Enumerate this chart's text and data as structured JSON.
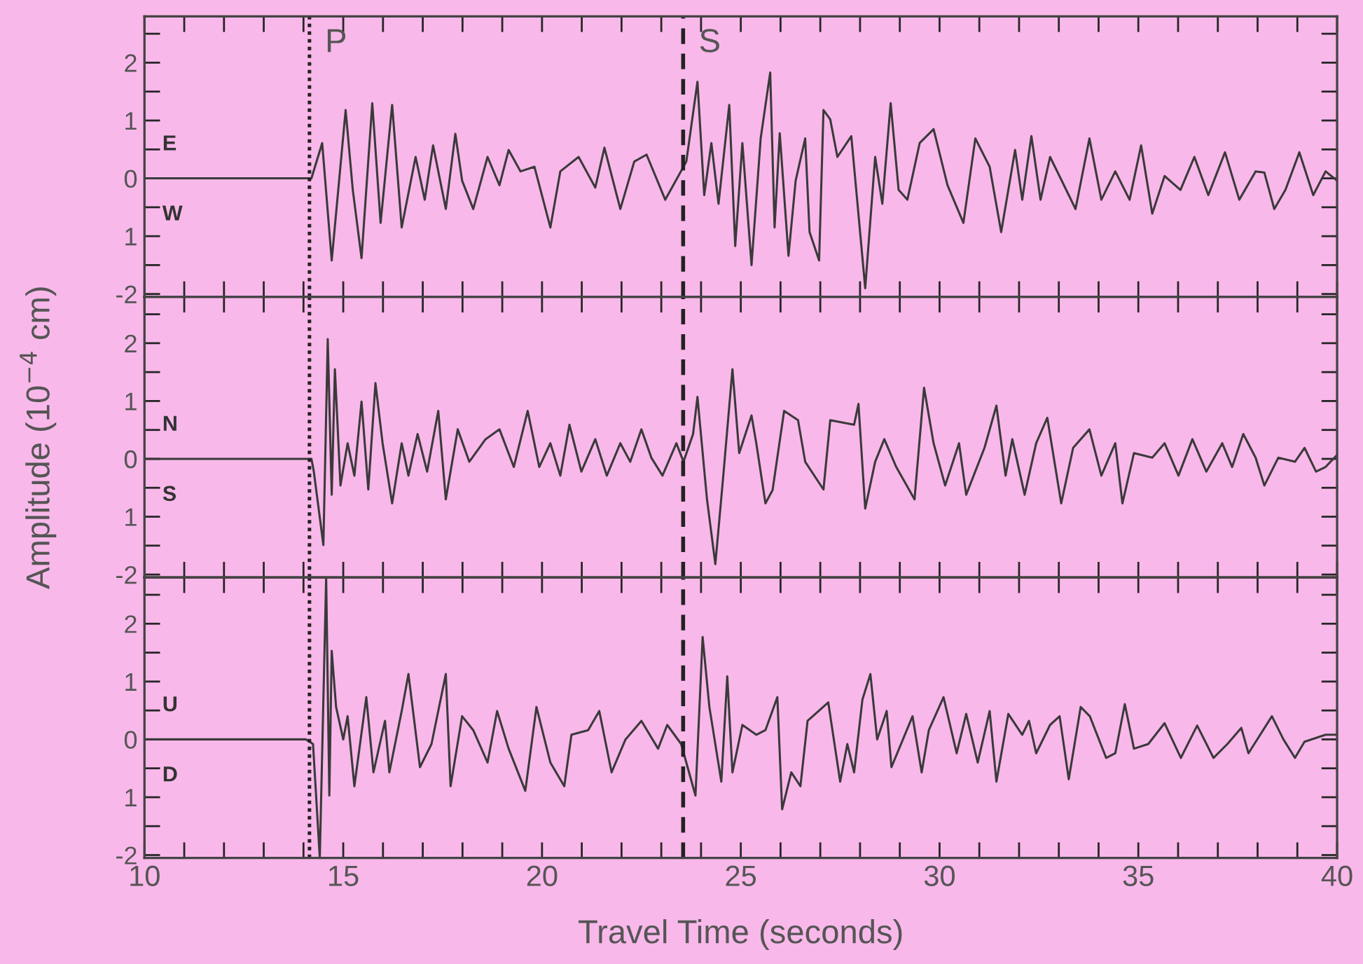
{
  "chart_data": [
    {
      "type": "line",
      "tick_labels": "y",
      "xlim": [
        10,
        40
      ],
      "ylim": [
        -2.05,
        2.8
      ],
      "xticks": [
        {
          "value": 10,
          "label": null
        },
        {
          "value": 11,
          "label": null
        },
        {
          "value": 12,
          "label": null
        },
        {
          "value": 13,
          "label": null
        },
        {
          "value": 14,
          "label": null
        },
        {
          "value": 15,
          "label": null
        },
        {
          "value": 16,
          "label": null
        },
        {
          "value": 17,
          "label": null
        },
        {
          "value": 18,
          "label": null
        },
        {
          "value": 19,
          "label": null
        },
        {
          "value": 20,
          "label": null
        },
        {
          "value": 21,
          "label": null
        },
        {
          "value": 22,
          "label": null
        },
        {
          "value": 23,
          "label": null
        },
        {
          "value": 24,
          "label": null
        },
        {
          "value": 25,
          "label": null
        },
        {
          "value": 26,
          "label": null
        },
        {
          "value": 27,
          "label": null
        },
        {
          "value": 28,
          "label": null
        },
        {
          "value": 29,
          "label": null
        },
        {
          "value": 30,
          "label": null
        },
        {
          "value": 31,
          "label": null
        },
        {
          "value": 32,
          "label": null
        },
        {
          "value": 33,
          "label": null
        },
        {
          "value": 34,
          "label": null
        },
        {
          "value": 35,
          "label": null
        },
        {
          "value": 36,
          "label": null
        },
        {
          "value": 37,
          "label": null
        },
        {
          "value": 38,
          "label": null
        },
        {
          "value": 39,
          "label": null
        },
        {
          "value": 40,
          "label": null
        }
      ],
      "yticks": [
        -2,
        {
          "value": -1.5,
          "label": null
        },
        {
          "value": -1,
          "label": "1"
        },
        {
          "value": -0.5,
          "label": null
        },
        0,
        {
          "value": 0.5,
          "label": null
        },
        1,
        {
          "value": 1.5,
          "label": null
        },
        2,
        {
          "value": 2.5,
          "label": null
        }
      ],
      "ref_lines": [
        {
          "axis": "x",
          "value": 14.15,
          "label": "P",
          "line_style": "dotted",
          "color": "#222222"
        },
        {
          "axis": "x",
          "value": 23.55,
          "label": "S",
          "line_style": "dashed",
          "color": "#222222"
        }
      ],
      "annotations": [
        "E",
        "W"
      ],
      "series": [
        {
          "color": "#3a3a3a",
          "x": [
            10,
            14.2,
            14.47,
            14.71,
            15.06,
            15.24,
            15.46,
            15.73,
            15.94,
            16.23,
            16.47,
            16.82,
            17.05,
            17.26,
            17.58,
            17.82,
            17.99,
            18.27,
            18.63,
            18.93,
            19.16,
            19.46,
            19.81,
            20.21,
            20.46,
            20.92,
            21.34,
            21.57,
            21.97,
            22.32,
            22.63,
            23.1,
            23.63,
            23.91,
            24.08,
            24.26,
            24.44,
            24.71,
            24.86,
            25.04,
            25.27,
            25.5,
            25.74,
            25.85,
            25.98,
            26.2,
            26.38,
            26.62,
            26.73,
            26.97,
            27.08,
            27.25,
            27.43,
            27.78,
            28.13,
            28.38,
            28.56,
            28.77,
            28.97,
            29.19,
            29.5,
            29.85,
            30.2,
            30.6,
            30.9,
            31.26,
            31.55,
            31.9,
            32.08,
            32.31,
            32.54,
            32.78,
            33.13,
            33.42,
            33.77,
            34.07,
            34.42,
            34.78,
            35.07,
            35.35,
            35.66,
            36.06,
            36.41,
            36.76,
            37.18,
            37.54,
            37.95,
            38.17,
            38.42,
            38.7,
            39.05,
            39.4,
            39.71,
            40
          ],
          "values": [
            0,
            0,
            0.61,
            -1.42,
            1.18,
            -0.2,
            -1.38,
            1.3,
            -0.77,
            1.27,
            -0.85,
            0.37,
            -0.37,
            0.57,
            -0.53,
            0.77,
            -0.04,
            -0.53,
            0.37,
            -0.12,
            0.49,
            0.12,
            0.2,
            -0.85,
            0.12,
            0.37,
            -0.16,
            0.53,
            -0.53,
            0.29,
            0.41,
            -0.37,
            0.29,
            1.67,
            -0.29,
            0.61,
            -0.44,
            1.27,
            -1.17,
            0.61,
            -1.5,
            0.69,
            1.83,
            -0.85,
            0.78,
            -1.34,
            -0.04,
            0.69,
            -0.93,
            -1.42,
            1.18,
            1.02,
            0.37,
            0.73,
            -1.9,
            0.37,
            -0.44,
            1.3,
            -0.2,
            -0.37,
            0.61,
            0.85,
            -0.12,
            -0.77,
            0.69,
            0.2,
            -0.93,
            0.49,
            -0.37,
            0.73,
            -0.37,
            0.37,
            -0.12,
            -0.53,
            0.69,
            -0.37,
            0.12,
            -0.37,
            0.57,
            -0.61,
            0.04,
            -0.2,
            0.37,
            -0.29,
            0.45,
            -0.37,
            0.12,
            0.1,
            -0.53,
            -0.2,
            0.45,
            -0.29,
            0.12,
            -0.04
          ]
        }
      ]
    },
    {
      "type": "line",
      "tick_labels": "y",
      "xlim": [
        10,
        40
      ],
      "ylim": [
        -2.05,
        2.8
      ],
      "ylabel": "Amplitude (10$^{−4}$ cm)",
      "xticks": [
        {
          "value": 10,
          "label": null
        },
        {
          "value": 11,
          "label": null
        },
        {
          "value": 12,
          "label": null
        },
        {
          "value": 13,
          "label": null
        },
        {
          "value": 14,
          "label": null
        },
        {
          "value": 15,
          "label": null
        },
        {
          "value": 16,
          "label": null
        },
        {
          "value": 17,
          "label": null
        },
        {
          "value": 18,
          "label": null
        },
        {
          "value": 19,
          "label": null
        },
        {
          "value": 20,
          "label": null
        },
        {
          "value": 21,
          "label": null
        },
        {
          "value": 22,
          "label": null
        },
        {
          "value": 23,
          "label": null
        },
        {
          "value": 24,
          "label": null
        },
        {
          "value": 25,
          "label": null
        },
        {
          "value": 26,
          "label": null
        },
        {
          "value": 27,
          "label": null
        },
        {
          "value": 28,
          "label": null
        },
        {
          "value": 29,
          "label": null
        },
        {
          "value": 30,
          "label": null
        },
        {
          "value": 31,
          "label": null
        },
        {
          "value": 32,
          "label": null
        },
        {
          "value": 33,
          "label": null
        },
        {
          "value": 34,
          "label": null
        },
        {
          "value": 35,
          "label": null
        },
        {
          "value": 36,
          "label": null
        },
        {
          "value": 37,
          "label": null
        },
        {
          "value": 38,
          "label": null
        },
        {
          "value": 39,
          "label": null
        },
        {
          "value": 40,
          "label": null
        }
      ],
      "yticks": [
        -2,
        {
          "value": -1.5,
          "label": null
        },
        {
          "value": -1,
          "label": "1"
        },
        {
          "value": -0.5,
          "label": null
        },
        0,
        {
          "value": 0.5,
          "label": null
        },
        1,
        {
          "value": 1.5,
          "label": null
        },
        2,
        {
          "value": 2.5,
          "label": null
        }
      ],
      "ref_lines": [
        {
          "axis": "x",
          "value": 14.15,
          "line_style": "dotted",
          "color": "#222222"
        },
        {
          "axis": "x",
          "value": 23.55,
          "line_style": "dashed",
          "color": "#222222"
        }
      ],
      "annotations": [
        "N",
        "S"
      ],
      "series": [
        {
          "color": "#3a3a3a",
          "x": [
            10,
            14.2,
            14.26,
            14.5,
            14.61,
            14.71,
            14.79,
            14.93,
            15.11,
            15.28,
            15.46,
            15.63,
            15.81,
            15.99,
            16.23,
            16.47,
            16.64,
            16.87,
            17.11,
            17.39,
            17.58,
            17.88,
            18.17,
            18.58,
            18.93,
            19.29,
            19.64,
            19.93,
            20.21,
            20.46,
            20.69,
            20.99,
            21.34,
            21.63,
            21.97,
            22.22,
            22.5,
            22.75,
            23.03,
            23.38,
            23.56,
            23.8,
            23.91,
            24.15,
            24.36,
            24.56,
            24.79,
            24.96,
            25.27,
            25.39,
            25.62,
            25.8,
            26.09,
            26.44,
            26.62,
            27.08,
            27.25,
            27.85,
            27.96,
            28.13,
            28.38,
            28.61,
            28.91,
            29.37,
            29.61,
            29.85,
            30.14,
            30.49,
            30.67,
            31.13,
            31.43,
            31.66,
            31.83,
            32.14,
            32.43,
            32.71,
            33.06,
            33.36,
            33.77,
            34.07,
            34.42,
            34.6,
            34.89,
            35.35,
            35.66,
            36.01,
            36.36,
            36.71,
            37.11,
            37.36,
            37.64,
            37.95,
            38.17,
            38.52,
            38.94,
            39.18,
            39.47,
            39.71,
            40
          ],
          "values": [
            0,
            0,
            -0.22,
            -1.49,
            2.07,
            -0.62,
            1.55,
            -0.46,
            0.27,
            -0.29,
            0.99,
            -0.53,
            1.31,
            0.27,
            -0.77,
            0.27,
            -0.29,
            0.43,
            -0.22,
            0.83,
            -0.7,
            0.51,
            -0.05,
            0.34,
            0.51,
            -0.14,
            0.83,
            -0.14,
            0.27,
            -0.29,
            0.59,
            -0.22,
            0.34,
            -0.29,
            0.27,
            -0.05,
            0.51,
            0.02,
            -0.29,
            0.27,
            -0.05,
            0.43,
            1.07,
            -0.7,
            -1.82,
            -0.29,
            1.55,
            0.1,
            0.75,
            0.27,
            -0.77,
            -0.54,
            0.83,
            0.67,
            -0.05,
            -0.53,
            0.67,
            0.59,
            0.95,
            -0.86,
            -0.05,
            0.34,
            -0.14,
            -0.7,
            1.23,
            0.27,
            -0.46,
            0.27,
            -0.62,
            0.19,
            0.92,
            -0.29,
            0.34,
            -0.62,
            0.27,
            0.71,
            -0.77,
            0.19,
            0.51,
            -0.29,
            0.27,
            -0.77,
            0.1,
            0.02,
            0.27,
            -0.29,
            0.34,
            -0.22,
            0.27,
            -0.14,
            0.43,
            0.02,
            -0.46,
            0.02,
            -0.05,
            0.19,
            -0.22,
            -0.14,
            0.07
          ]
        }
      ]
    },
    {
      "type": "line",
      "xlim": [
        10,
        40
      ],
      "ylim": [
        -2.05,
        2.8
      ],
      "xlabel": "Travel Time (seconds)",
      "xticks": [
        10,
        {
          "value": 11,
          "label": null
        },
        {
          "value": 12,
          "label": null
        },
        {
          "value": 13,
          "label": null
        },
        {
          "value": 14,
          "label": null
        },
        15,
        {
          "value": 16,
          "label": null
        },
        {
          "value": 17,
          "label": null
        },
        {
          "value": 18,
          "label": null
        },
        {
          "value": 19,
          "label": null
        },
        20,
        {
          "value": 21,
          "label": null
        },
        {
          "value": 22,
          "label": null
        },
        {
          "value": 23,
          "label": null
        },
        {
          "value": 24,
          "label": null
        },
        25,
        {
          "value": 26,
          "label": null
        },
        {
          "value": 27,
          "label": null
        },
        {
          "value": 28,
          "label": null
        },
        {
          "value": 29,
          "label": null
        },
        30,
        {
          "value": 31,
          "label": null
        },
        {
          "value": 32,
          "label": null
        },
        {
          "value": 33,
          "label": null
        },
        {
          "value": 34,
          "label": null
        },
        35,
        {
          "value": 36,
          "label": null
        },
        {
          "value": 37,
          "label": null
        },
        {
          "value": 38,
          "label": null
        },
        {
          "value": 39,
          "label": null
        },
        40
      ],
      "yticks": [
        -2,
        {
          "value": -1.5,
          "label": null
        },
        {
          "value": -1,
          "label": "1"
        },
        {
          "value": -0.5,
          "label": null
        },
        0,
        {
          "value": 0.5,
          "label": null
        },
        1,
        {
          "value": 1.5,
          "label": null
        },
        2,
        {
          "value": 2.5,
          "label": null
        }
      ],
      "ref_lines": [
        {
          "axis": "x",
          "value": 14.15,
          "line_style": "dotted",
          "color": "#222222"
        },
        {
          "axis": "x",
          "value": 23.55,
          "line_style": "dashed",
          "color": "#222222"
        }
      ],
      "annotations": [
        "U",
        "D"
      ],
      "series": [
        {
          "color": "#3a3a3a",
          "x": [
            10,
            14.06,
            14.24,
            14.41,
            14.57,
            14.65,
            14.71,
            14.82,
            15.0,
            15.11,
            15.28,
            15.58,
            15.76,
            16.05,
            16.16,
            16.47,
            16.64,
            16.93,
            17.22,
            17.58,
            17.7,
            17.99,
            18.27,
            18.63,
            18.87,
            19.16,
            19.58,
            19.86,
            20.21,
            20.56,
            20.74,
            21.16,
            21.44,
            21.75,
            22.1,
            22.5,
            22.92,
            23.15,
            23.5,
            23.86,
            24.04,
            24.21,
            24.51,
            24.66,
            24.79,
            25.04,
            25.39,
            25.62,
            25.92,
            26.04,
            26.27,
            26.5,
            26.68,
            27.2,
            27.5,
            27.68,
            27.85,
            28.06,
            28.26,
            28.43,
            28.67,
            28.79,
            29.32,
            29.55,
            29.73,
            30.1,
            30.43,
            30.67,
            30.96,
            31.26,
            31.43,
            31.73,
            32.08,
            32.25,
            32.43,
            32.78,
            33.02,
            33.25,
            33.55,
            33.78,
            34.19,
            34.42,
            34.66,
            34.89,
            35.25,
            35.66,
            36.07,
            36.48,
            36.89,
            37.24,
            37.59,
            37.77,
            38.36,
            38.65,
            38.94,
            39.18,
            39.71,
            40
          ],
          "values": [
            0,
            0,
            -0.08,
            -2.05,
            2.8,
            -0.97,
            1.53,
            0.56,
            0,
            0.4,
            -0.81,
            0.73,
            -0.57,
            0.32,
            -0.57,
            0.49,
            1.13,
            -0.48,
            -0.08,
            1.13,
            -0.81,
            0.4,
            0.16,
            -0.4,
            0.49,
            -0.16,
            -0.89,
            0.56,
            -0.4,
            -0.81,
            0.08,
            0.16,
            0.49,
            -0.57,
            0,
            0.32,
            -0.16,
            0.25,
            -0.08,
            -0.97,
            1.77,
            0.56,
            -0.73,
            1.09,
            -0.57,
            0.25,
            0.08,
            0.16,
            0.73,
            -1.21,
            -0.57,
            -0.81,
            0.32,
            0.64,
            -0.73,
            -0.08,
            -0.57,
            0.69,
            1.13,
            0,
            0.49,
            -0.48,
            0.4,
            -0.57,
            0.16,
            0.73,
            -0.24,
            0.44,
            -0.4,
            0.49,
            -0.73,
            0.44,
            0.08,
            0.32,
            -0.24,
            0.25,
            0.4,
            -0.69,
            0.56,
            0.4,
            -0.32,
            -0.24,
            0.61,
            -0.16,
            -0.08,
            0.28,
            -0.32,
            0.24,
            -0.32,
            -0.08,
            0.2,
            -0.24,
            0.4,
            0,
            -0.32,
            -0.04,
            0.08,
            0.08
          ]
        }
      ]
    }
  ]
}
